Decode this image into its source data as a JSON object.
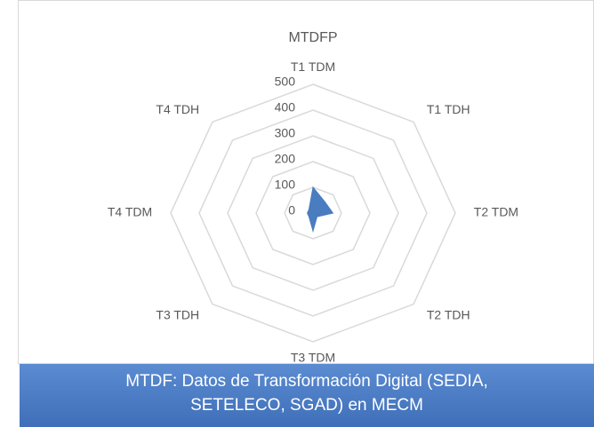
{
  "chart_data": {
    "type": "radar",
    "title": "MTDFP",
    "categories": [
      "T1 TDM",
      "T1 TDH",
      "T2 TDM",
      "T2 TDH",
      "T3 TDM",
      "T3 TDH",
      "T4 TDM",
      "T4 TDH"
    ],
    "series": [
      {
        "name": null,
        "color": "#4a7cc0",
        "values": [
          100,
          60,
          70,
          20,
          70,
          20,
          20,
          20
        ]
      }
    ],
    "ylim": [
      0,
      500
    ],
    "yticks": [
      0,
      100,
      200,
      300,
      400,
      500
    ],
    "grid": true
  },
  "caption": {
    "lines": [
      "MTDF: Datos de Transformación Digital (SEDIA,",
      "SETELECO, SGAD) en MECM"
    ]
  }
}
